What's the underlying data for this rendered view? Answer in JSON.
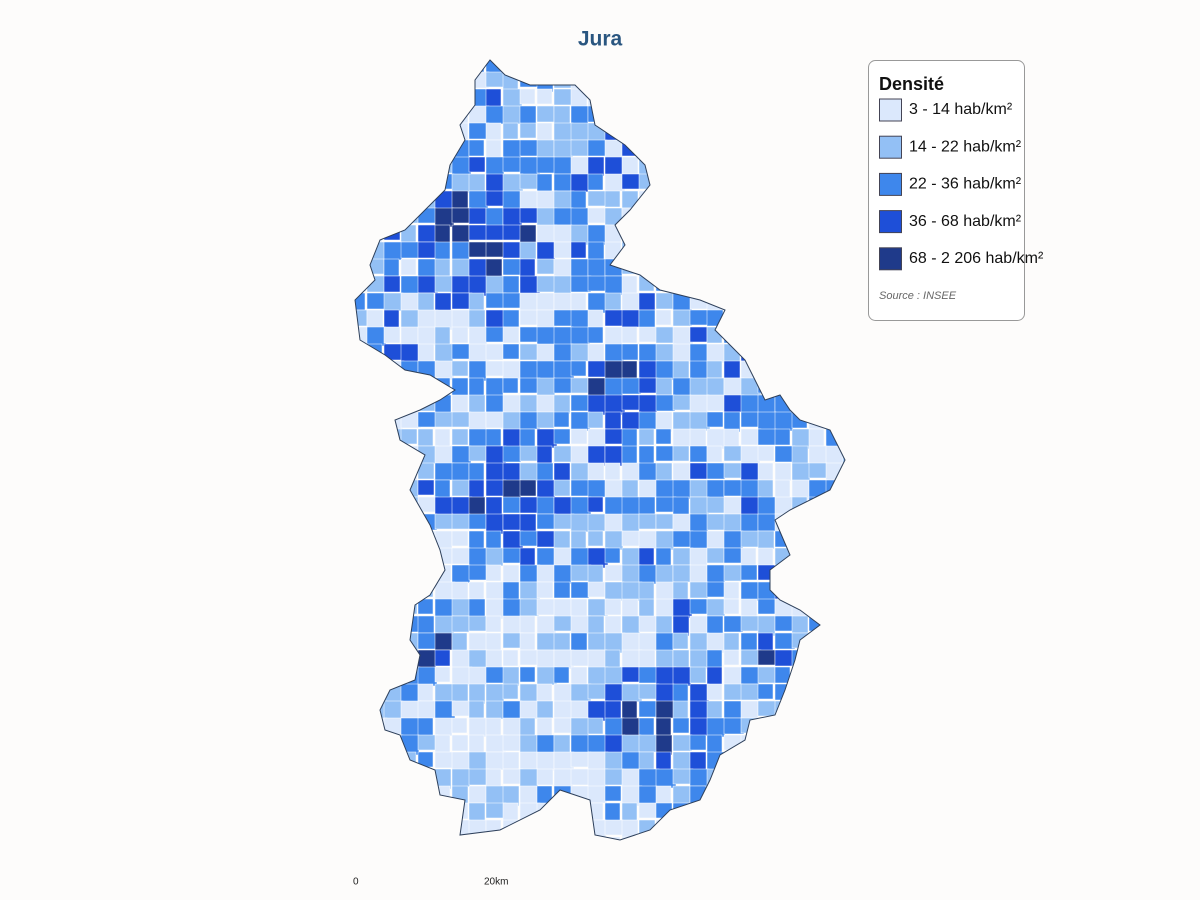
{
  "title": "Jura",
  "legend": {
    "title": "Densité",
    "items": [
      {
        "label": "3 - 14 hab/km²",
        "color": "#dbe8fc"
      },
      {
        "label": "14 - 22 hab/km²",
        "color": "#93c0f5"
      },
      {
        "label": "22 - 36 hab/km²",
        "color": "#3e87ec"
      },
      {
        "label": "36 - 68 hab/km²",
        "color": "#1e4fd8"
      },
      {
        "label": "68 - 2 206 hab/km²",
        "color": "#1f3a8a"
      }
    ]
  },
  "source": "Source : INSEE",
  "scale": {
    "start": "0",
    "end": "20km"
  }
}
